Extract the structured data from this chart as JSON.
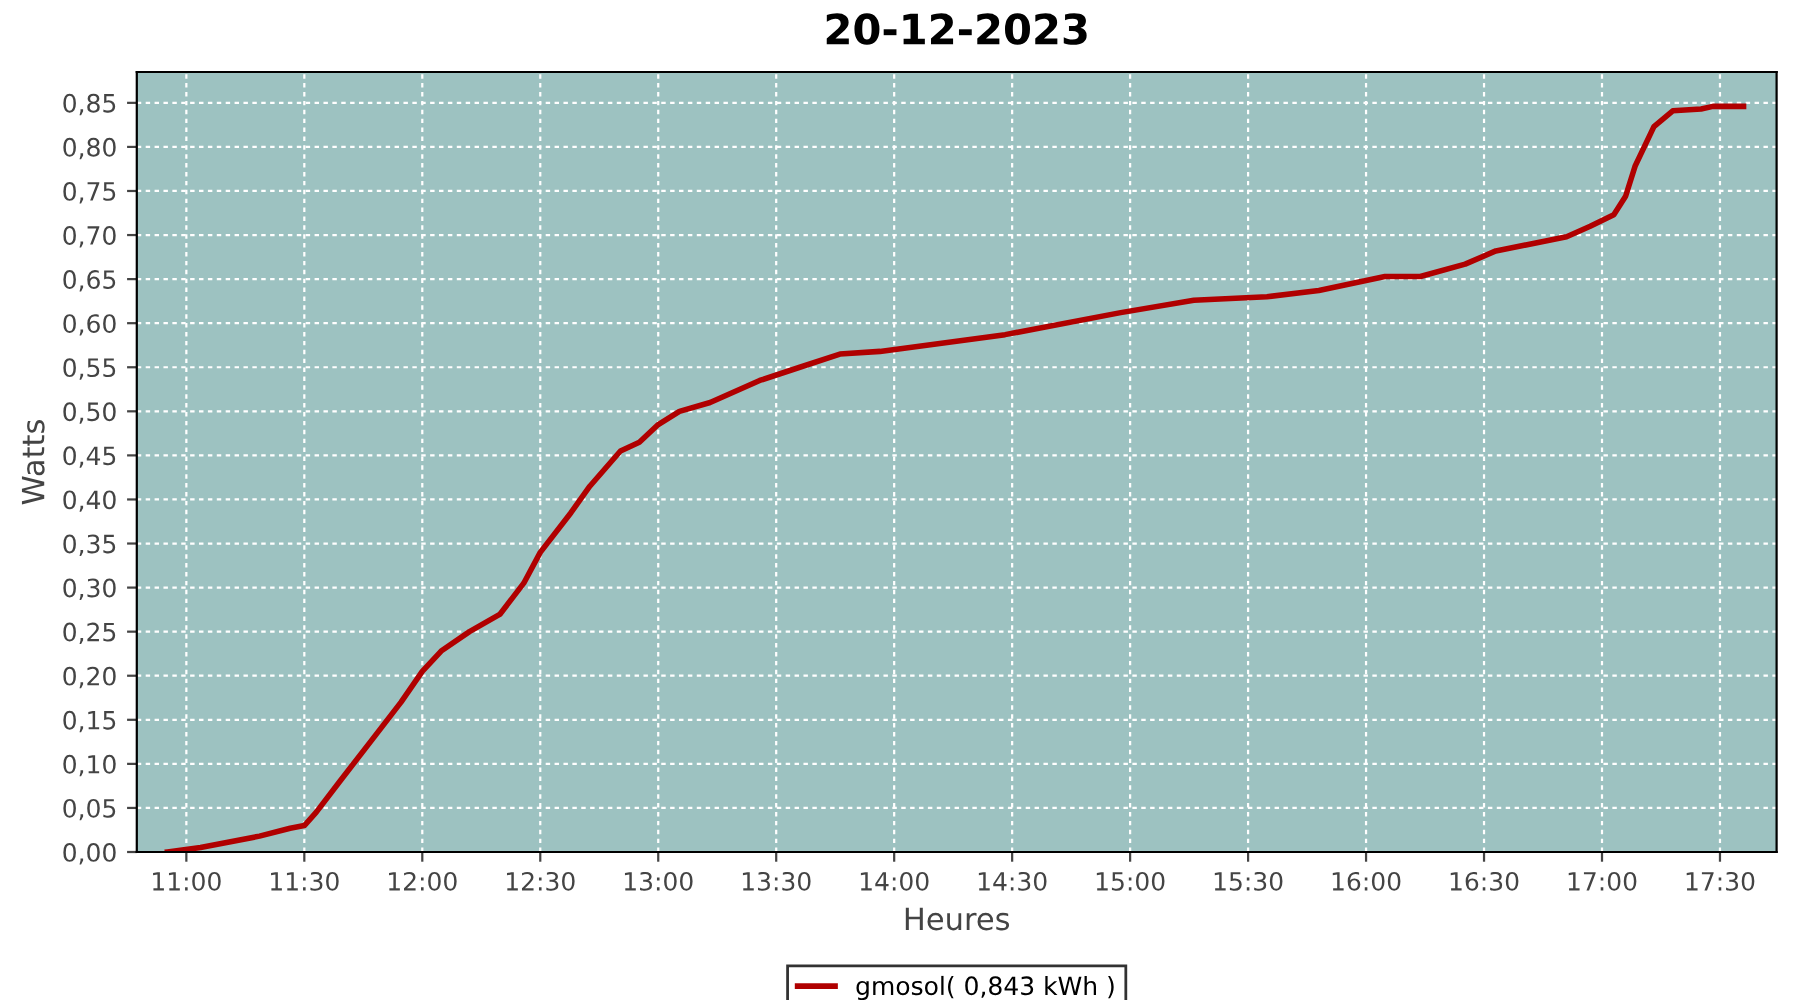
{
  "chart_data": {
    "type": "line",
    "title": "20-12-2023",
    "xlabel": "Heures",
    "ylabel": "Watts",
    "xlim": [
      10.79,
      17.74
    ],
    "ylim": [
      0,
      0.885
    ],
    "xticks": [
      {
        "value": 11,
        "label": "11:00"
      },
      {
        "value": 11.5,
        "label": "11:30"
      },
      {
        "value": 12,
        "label": "12:00"
      },
      {
        "value": 12.5,
        "label": "12:30"
      },
      {
        "value": 13,
        "label": "13:00"
      },
      {
        "value": 13.5,
        "label": "13:30"
      },
      {
        "value": 14,
        "label": "14:00"
      },
      {
        "value": 14.5,
        "label": "14:30"
      },
      {
        "value": 15,
        "label": "15:00"
      },
      {
        "value": 15.5,
        "label": "15:30"
      },
      {
        "value": 16,
        "label": "16:00"
      },
      {
        "value": 16.5,
        "label": "16:30"
      },
      {
        "value": 17,
        "label": "17:00"
      },
      {
        "value": 17.5,
        "label": "17:30"
      }
    ],
    "yticks": [
      {
        "value": 0,
        "label": "0,00"
      },
      {
        "value": 0.05,
        "label": "0,05"
      },
      {
        "value": 0.1,
        "label": "0,10"
      },
      {
        "value": 0.15,
        "label": "0,15"
      },
      {
        "value": 0.2,
        "label": "0,20"
      },
      {
        "value": 0.25,
        "label": "0,25"
      },
      {
        "value": 0.3,
        "label": "0,30"
      },
      {
        "value": 0.35,
        "label": "0,35"
      },
      {
        "value": 0.4,
        "label": "0,40"
      },
      {
        "value": 0.45,
        "label": "0,45"
      },
      {
        "value": 0.5,
        "label": "0,50"
      },
      {
        "value": 0.55,
        "label": "0,55"
      },
      {
        "value": 0.6,
        "label": "0,60"
      },
      {
        "value": 0.65,
        "label": "0,65"
      },
      {
        "value": 0.7,
        "label": "0,70"
      },
      {
        "value": 0.75,
        "label": "0,75"
      },
      {
        "value": 0.8,
        "label": "0,80"
      },
      {
        "value": 0.85,
        "label": "0,85"
      }
    ],
    "grid": true,
    "legend": "bottom",
    "marker": "none",
    "line_style": "solid",
    "series": [
      {
        "name": "gmosol( 0,843 kWh )",
        "color": "#b00000",
        "x": [
          10.92,
          11.06,
          11.31,
          11.44,
          11.5,
          11.55,
          11.65,
          11.78,
          11.91,
          12.0,
          12.08,
          12.2,
          12.33,
          12.43,
          12.5,
          12.63,
          12.71,
          12.84,
          12.92,
          13.0,
          13.09,
          13.22,
          13.43,
          13.6,
          13.77,
          13.94,
          14.47,
          14.96,
          15.27,
          15.58,
          15.8,
          16.08,
          16.23,
          16.42,
          16.55,
          16.85,
          16.95,
          17.05,
          17.1,
          17.14,
          17.22,
          17.3,
          17.42,
          17.47,
          17.6
        ],
        "values": [
          0,
          0.005,
          0.018,
          0.027,
          0.03,
          0.045,
          0.08,
          0.125,
          0.17,
          0.205,
          0.228,
          0.25,
          0.27,
          0.305,
          0.34,
          0.385,
          0.415,
          0.455,
          0.465,
          0.485,
          0.5,
          0.51,
          0.535,
          0.55,
          0.565,
          0.568,
          0.587,
          0.612,
          0.626,
          0.63,
          0.637,
          0.653,
          0.653,
          0.667,
          0.682,
          0.698,
          0.71,
          0.723,
          0.744,
          0.778,
          0.823,
          0.841,
          0.843,
          0.846,
          0.846
        ]
      }
    ]
  }
}
